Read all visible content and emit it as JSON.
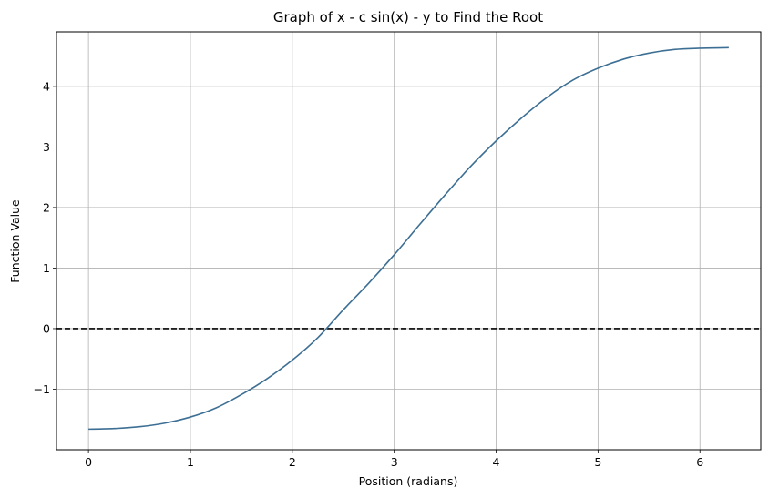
{
  "chart_data": {
    "type": "line",
    "title": "Graph of x - c sin(x) - y to Find the Root",
    "xlabel": "Position (radians)",
    "ylabel": "Function Value",
    "xlim": [
      -0.314,
      6.597
    ],
    "ylim": [
      -2.0,
      4.9
    ],
    "x_ticks": [
      0,
      1,
      2,
      3,
      4,
      5,
      6
    ],
    "y_ticks": [
      -1,
      0,
      1,
      2,
      3,
      4
    ],
    "y_tick_labels": [
      "−1",
      "0",
      "1",
      "2",
      "3",
      "4"
    ],
    "grid": true,
    "series": [
      {
        "color": "#3d6f94",
        "x": [
          0,
          0.25,
          0.5,
          0.75,
          1.0,
          1.25,
          1.5,
          1.75,
          2.0,
          2.25,
          2.5,
          2.75,
          3.0,
          3.25,
          3.5,
          3.75,
          4.0,
          4.25,
          4.5,
          4.75,
          5.0,
          5.25,
          5.5,
          5.75,
          6.0,
          6.283
        ],
        "y": [
          -1.66,
          -1.65,
          -1.62,
          -1.56,
          -1.46,
          -1.31,
          -1.09,
          -0.83,
          -0.52,
          -0.15,
          0.31,
          0.75,
          1.22,
          1.72,
          2.21,
          2.68,
          3.1,
          3.48,
          3.82,
          4.1,
          4.3,
          4.45,
          4.55,
          4.61,
          4.63,
          4.64
        ]
      }
    ],
    "reference_lines": [
      {
        "y": 0,
        "style": "dashed",
        "color": "#000000"
      }
    ]
  }
}
